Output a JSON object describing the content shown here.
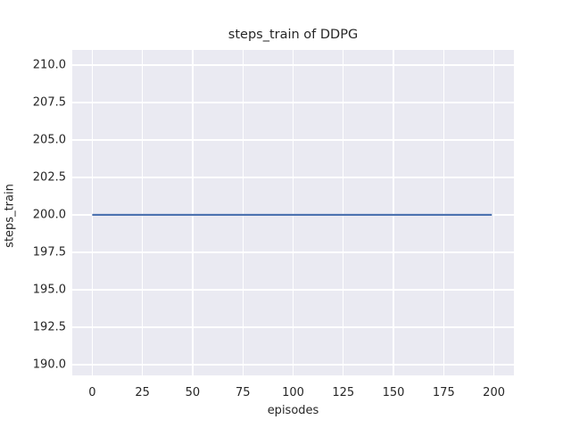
{
  "chart_data": {
    "type": "line",
    "title": "steps_train of DDPG",
    "xlabel": "episodes",
    "ylabel": "steps_train",
    "xlim": [
      -9.95,
      209.95
    ],
    "ylim": [
      189.29,
      211.0
    ],
    "xticks": [
      0,
      25,
      50,
      75,
      100,
      125,
      150,
      175,
      200
    ],
    "xtick_labels": [
      "0",
      "25",
      "50",
      "75",
      "100",
      "125",
      "150",
      "175",
      "200"
    ],
    "yticks": [
      190.0,
      192.5,
      195.0,
      197.5,
      200.0,
      202.5,
      205.0,
      207.5,
      210.0
    ],
    "ytick_labels": [
      "190.0",
      "192.5",
      "195.0",
      "197.5",
      "200.0",
      "202.5",
      "205.0",
      "207.5",
      "210.0"
    ],
    "grid": true,
    "legend": "none",
    "series": [
      {
        "name": "steps_train",
        "color": "#4c72b0",
        "x": [
          0,
          199
        ],
        "y": [
          200,
          200
        ]
      }
    ],
    "colors": {
      "figure_background": "#ffffff",
      "axes_background": "#eaeaf2",
      "gridline": "#ffffff",
      "text": "#262626",
      "line": "#4c72b0"
    }
  }
}
